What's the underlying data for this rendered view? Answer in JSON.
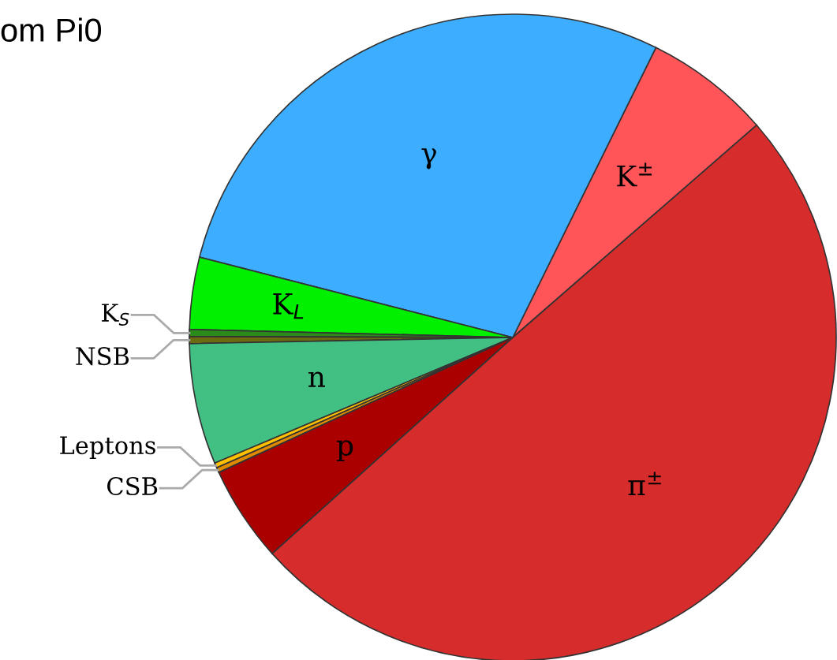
{
  "chart_data": {
    "type": "pie",
    "title": "om Pi0",
    "categories": [
      "K$^{±}$",
      "γ",
      "K$_{L}$",
      "K$_{S}$",
      "NSB",
      "n",
      "Leptons",
      "CSB",
      "p",
      "π$^{±}$"
    ],
    "values": [
      6.3,
      28.3,
      3.6,
      0.35,
      0.35,
      6.05,
      0.25,
      0.25,
      4.8,
      49.75
    ],
    "colors": [
      "#ff5558",
      "#3daeff",
      "#00f000",
      "#2a8a1a",
      "#6b6b10",
      "#42c084",
      "#ffc000",
      "#e08a00",
      "#aa0000",
      "#d72c2c"
    ],
    "legend": false
  }
}
